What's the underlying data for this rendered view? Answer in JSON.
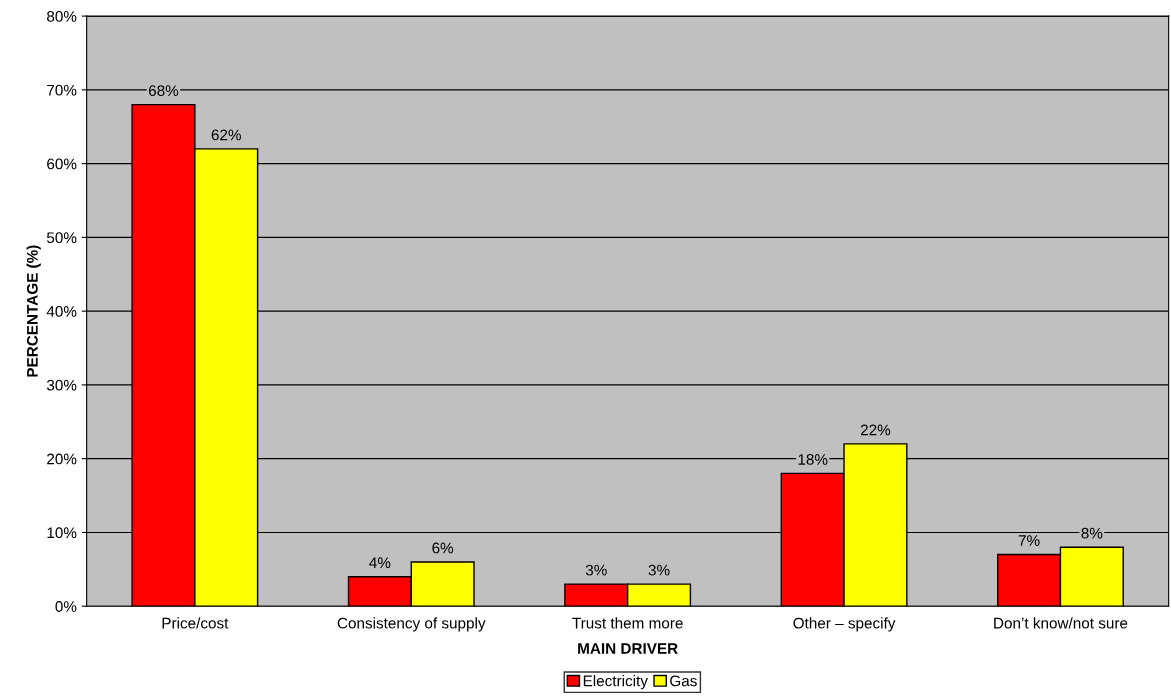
{
  "chart_data": {
    "type": "bar",
    "xlabel": "MAIN DRIVER",
    "ylabel": "PERCENTAGE (%)",
    "categories": [
      "Price/cost",
      "Consistency of supply",
      "Trust them more",
      "Other – specify",
      "Don’t know/not sure"
    ],
    "series": [
      {
        "name": "Electricity",
        "color": "#ff0000",
        "values": [
          68,
          4,
          3,
          18,
          7
        ],
        "value_labels": [
          "68%",
          "4%",
          "3%",
          "18%",
          "7%"
        ]
      },
      {
        "name": "Gas",
        "color": "#ffff00",
        "values": [
          62,
          6,
          3,
          22,
          8
        ],
        "value_labels": [
          "62%",
          "6%",
          "3%",
          "22%",
          "8%"
        ]
      }
    ],
    "ylim": [
      0,
      80
    ],
    "yticks": [
      {
        "value": 0,
        "label": "0%"
      },
      {
        "value": 10,
        "label": "10%"
      },
      {
        "value": 20,
        "label": "20%"
      },
      {
        "value": 30,
        "label": "30%"
      },
      {
        "value": 40,
        "label": "40%"
      },
      {
        "value": 50,
        "label": "50%"
      },
      {
        "value": 60,
        "label": "60%"
      },
      {
        "value": 70,
        "label": "70%"
      },
      {
        "value": 80,
        "label": "80%"
      }
    ],
    "grid": "y",
    "legend": "bottom"
  }
}
